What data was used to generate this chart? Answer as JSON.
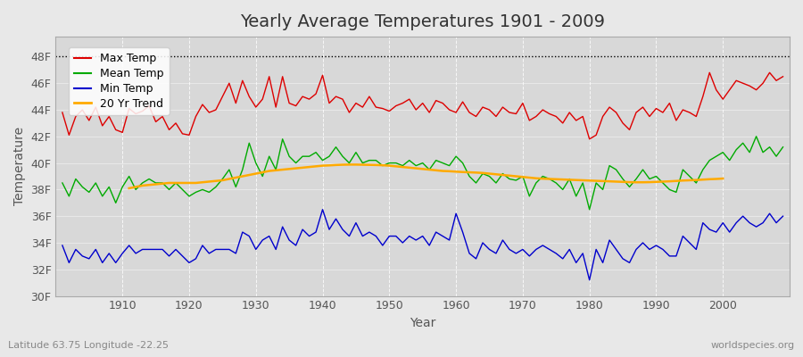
{
  "title": "Yearly Average Temperatures 1901 - 2009",
  "xlabel": "Year",
  "ylabel": "Temperature",
  "bottom_left": "Latitude 63.75 Longitude -22.25",
  "bottom_right": "worldspecies.org",
  "years": [
    1901,
    1902,
    1903,
    1904,
    1905,
    1906,
    1907,
    1908,
    1909,
    1910,
    1911,
    1912,
    1913,
    1914,
    1915,
    1916,
    1917,
    1918,
    1919,
    1920,
    1921,
    1922,
    1923,
    1924,
    1925,
    1926,
    1927,
    1928,
    1929,
    1930,
    1931,
    1932,
    1933,
    1934,
    1935,
    1936,
    1937,
    1938,
    1939,
    1940,
    1941,
    1942,
    1943,
    1944,
    1945,
    1946,
    1947,
    1948,
    1949,
    1950,
    1951,
    1952,
    1953,
    1954,
    1955,
    1956,
    1957,
    1958,
    1959,
    1960,
    1961,
    1962,
    1963,
    1964,
    1965,
    1966,
    1967,
    1968,
    1969,
    1970,
    1971,
    1972,
    1973,
    1974,
    1975,
    1976,
    1977,
    1978,
    1979,
    1980,
    1981,
    1982,
    1983,
    1984,
    1985,
    1986,
    1987,
    1988,
    1989,
    1990,
    1991,
    1992,
    1993,
    1994,
    1995,
    1996,
    1997,
    1998,
    1999,
    2000,
    2001,
    2002,
    2003,
    2004,
    2005,
    2006,
    2007,
    2008,
    2009
  ],
  "max_temp": [
    43.8,
    42.1,
    43.5,
    44.0,
    43.2,
    44.2,
    42.8,
    43.5,
    42.5,
    42.3,
    44.1,
    43.7,
    43.9,
    44.3,
    43.1,
    43.5,
    42.5,
    43.0,
    42.2,
    42.1,
    43.5,
    44.4,
    43.8,
    44.0,
    45.0,
    46.0,
    44.5,
    46.2,
    45.0,
    44.2,
    44.8,
    46.5,
    44.2,
    46.5,
    44.5,
    44.3,
    45.0,
    44.8,
    45.2,
    46.6,
    44.5,
    45.0,
    44.8,
    43.8,
    44.5,
    44.2,
    45.0,
    44.2,
    44.1,
    43.9,
    44.3,
    44.5,
    44.8,
    44.0,
    44.5,
    43.8,
    44.7,
    44.5,
    44.0,
    43.8,
    44.6,
    43.8,
    43.5,
    44.2,
    44.0,
    43.5,
    44.2,
    43.8,
    43.7,
    44.5,
    43.2,
    43.5,
    44.0,
    43.7,
    43.5,
    43.0,
    43.8,
    43.2,
    43.5,
    41.8,
    42.1,
    43.5,
    44.2,
    43.8,
    43.0,
    42.5,
    43.8,
    44.2,
    43.5,
    44.1,
    43.8,
    44.5,
    43.2,
    44.0,
    43.8,
    43.5,
    45.0,
    46.8,
    45.5,
    44.8,
    45.5,
    46.2,
    46.0,
    45.8,
    45.5,
    46.0,
    46.8,
    46.2,
    46.5
  ],
  "mean_temp": [
    38.5,
    37.5,
    38.8,
    38.2,
    37.8,
    38.5,
    37.5,
    38.2,
    37.0,
    38.2,
    39.0,
    38.0,
    38.5,
    38.8,
    38.5,
    38.5,
    38.0,
    38.5,
    38.0,
    37.5,
    37.8,
    38.0,
    37.8,
    38.2,
    38.8,
    39.5,
    38.2,
    39.5,
    41.5,
    40.0,
    39.0,
    40.5,
    39.5,
    41.8,
    40.5,
    40.0,
    40.5,
    40.5,
    40.8,
    40.2,
    40.5,
    41.2,
    40.5,
    40.0,
    40.8,
    40.0,
    40.2,
    40.2,
    39.8,
    40.0,
    40.0,
    39.8,
    40.2,
    39.8,
    40.0,
    39.5,
    40.2,
    40.0,
    39.8,
    40.5,
    40.0,
    39.0,
    38.5,
    39.2,
    39.0,
    38.5,
    39.2,
    38.8,
    38.7,
    39.0,
    37.5,
    38.5,
    39.0,
    38.8,
    38.5,
    38.0,
    38.8,
    37.5,
    38.5,
    36.5,
    38.5,
    38.0,
    39.8,
    39.5,
    38.8,
    38.2,
    38.8,
    39.5,
    38.8,
    39.0,
    38.5,
    38.0,
    37.8,
    39.5,
    39.0,
    38.5,
    39.5,
    40.2,
    40.5,
    40.8,
    40.2,
    41.0,
    41.5,
    40.8,
    42.0,
    40.8,
    41.2,
    40.5,
    41.2
  ],
  "min_temp": [
    33.8,
    32.5,
    33.5,
    33.0,
    32.8,
    33.5,
    32.5,
    33.2,
    32.5,
    33.2,
    33.8,
    33.2,
    33.5,
    33.5,
    33.5,
    33.5,
    33.0,
    33.5,
    33.0,
    32.5,
    32.8,
    33.8,
    33.2,
    33.5,
    33.5,
    33.5,
    33.2,
    34.8,
    34.5,
    33.5,
    34.2,
    34.5,
    33.5,
    35.2,
    34.2,
    33.8,
    35.0,
    34.5,
    34.8,
    36.5,
    35.0,
    35.8,
    35.0,
    34.5,
    35.5,
    34.5,
    34.8,
    34.5,
    33.8,
    34.5,
    34.5,
    34.0,
    34.5,
    34.2,
    34.5,
    33.8,
    34.8,
    34.5,
    34.2,
    36.2,
    34.8,
    33.2,
    32.8,
    34.0,
    33.5,
    33.2,
    34.2,
    33.5,
    33.2,
    33.5,
    33.0,
    33.5,
    33.8,
    33.5,
    33.2,
    32.8,
    33.5,
    32.5,
    33.2,
    31.2,
    33.5,
    32.5,
    34.2,
    33.5,
    32.8,
    32.5,
    33.5,
    34.0,
    33.5,
    33.8,
    33.5,
    33.0,
    33.0,
    34.5,
    34.0,
    33.5,
    35.5,
    35.0,
    34.8,
    35.5,
    34.8,
    35.5,
    36.0,
    35.5,
    35.2,
    35.5,
    36.2,
    35.5,
    36.0
  ],
  "trend_years": [
    1911,
    1912,
    1913,
    1914,
    1915,
    1916,
    1917,
    1918,
    1919,
    1920,
    1921,
    1922,
    1923,
    1924,
    1925,
    1926,
    1927,
    1928,
    1929,
    1930,
    1931,
    1932,
    1933,
    1934,
    1935,
    1936,
    1937,
    1938,
    1939,
    1940,
    1941,
    1942,
    1943,
    1944,
    1945,
    1946,
    1947,
    1948,
    1949,
    1950,
    1951,
    1952,
    1953,
    1954,
    1955,
    1956,
    1957,
    1958,
    1959,
    1960,
    1961,
    1962,
    1963,
    1964,
    1965,
    1966,
    1967,
    1968,
    1969,
    1970,
    1971,
    1972,
    1973,
    1974,
    1975,
    1976,
    1977,
    1978,
    1979,
    1980,
    1981,
    1982,
    1983,
    1984,
    1985,
    1986,
    1987,
    1988,
    1989,
    1990,
    1991,
    1992,
    1993,
    1994,
    1995,
    1996,
    1997,
    1998,
    1999,
    2000
  ],
  "trend_vals": [
    38.1,
    38.2,
    38.3,
    38.35,
    38.4,
    38.45,
    38.5,
    38.5,
    38.5,
    38.5,
    38.5,
    38.55,
    38.6,
    38.65,
    38.7,
    38.8,
    38.9,
    39.0,
    39.1,
    39.2,
    39.3,
    39.4,
    39.45,
    39.5,
    39.55,
    39.6,
    39.65,
    39.7,
    39.75,
    39.8,
    39.82,
    39.85,
    39.87,
    39.88,
    39.88,
    39.87,
    39.86,
    39.85,
    39.83,
    39.8,
    39.75,
    39.7,
    39.65,
    39.6,
    39.55,
    39.5,
    39.45,
    39.4,
    39.38,
    39.35,
    39.32,
    39.3,
    39.28,
    39.25,
    39.2,
    39.15,
    39.1,
    39.05,
    39.0,
    38.95,
    38.9,
    38.85,
    38.82,
    38.8,
    38.78,
    38.76,
    38.74,
    38.72,
    38.7,
    38.68,
    38.66,
    38.64,
    38.62,
    38.6,
    38.58,
    38.56,
    38.55,
    38.55,
    38.56,
    38.58,
    38.6,
    38.62,
    38.65,
    38.68,
    38.7,
    38.72,
    38.75,
    38.78,
    38.8,
    38.83
  ],
  "bg_color": "#e8e8e8",
  "plot_bg_color": "#d8d8d8",
  "max_color": "#dd0000",
  "mean_color": "#00aa00",
  "min_color": "#0000cc",
  "trend_color": "#ffaa00",
  "ylim_bottom": 30,
  "ylim_top": 49,
  "yticks": [
    30,
    32,
    34,
    36,
    38,
    40,
    42,
    44,
    46,
    48
  ],
  "ytick_labels": [
    "30F",
    "32F",
    "34F",
    "36F",
    "38F",
    "40F",
    "42F",
    "44F",
    "46F",
    "48F"
  ],
  "xmin": 1900,
  "xmax": 2010,
  "xticks": [
    1910,
    1920,
    1930,
    1940,
    1950,
    1960,
    1970,
    1980,
    1990,
    2000
  ],
  "dotted_line_y": 48,
  "title_fontsize": 14,
  "label_fontsize": 10,
  "tick_fontsize": 9,
  "legend_fontsize": 9
}
